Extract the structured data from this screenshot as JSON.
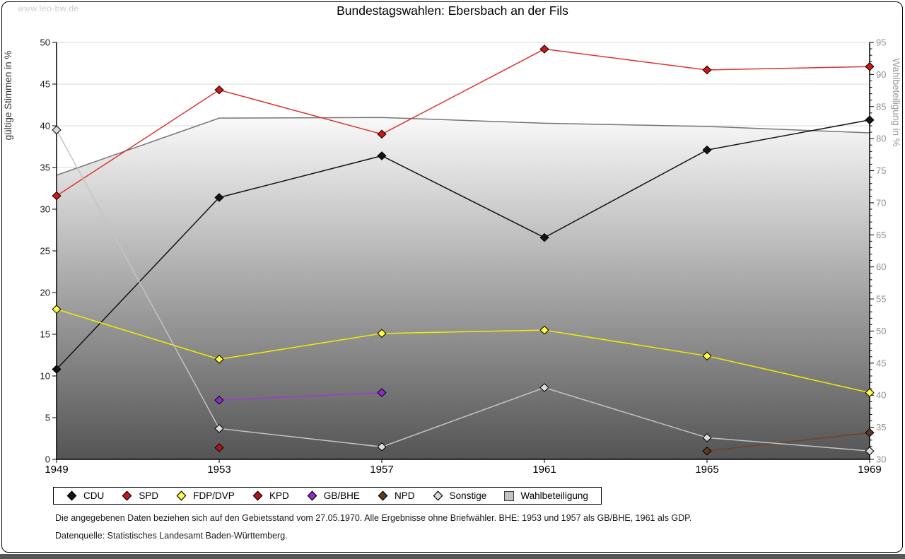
{
  "page": {
    "watermark": "www.leo-bw.de",
    "title": "Bundestagswahlen: Ebersbach an der Fils",
    "footnote_line1": "Die angegebenen Daten beziehen sich auf den Gebietsstand vom 27.05.1970. Alle Ergebnisse ohne Briefwähler. BHE: 1953 und 1957 als GB/BHE, 1961 als GDP.",
    "footnote_line2": "Datenquelle: Statistisches Landesamt Baden-Württemberg."
  },
  "chart_data": {
    "type": "line",
    "title": "Bundestagswahlen: Ebersbach an der Fils",
    "categories": [
      "1949",
      "1953",
      "1957",
      "1961",
      "1965",
      "1969"
    ],
    "xlabel": "",
    "ylabel_left": "gültige Stimmen in %",
    "ylabel_right": "Wahlbeteiligung in %",
    "ylim_left": [
      0,
      50
    ],
    "ylim_right": [
      30,
      95
    ],
    "yticks_left": [
      0,
      5,
      10,
      15,
      20,
      25,
      30,
      35,
      40,
      45,
      50
    ],
    "yticks_right": [
      30,
      35,
      40,
      45,
      50,
      55,
      60,
      65,
      70,
      75,
      80,
      85,
      90,
      95
    ],
    "grid": true,
    "legend_position": "bottom",
    "colors": {
      "gridline": "#d9d9d9",
      "axis": "#000000",
      "left_tick_text": "#1a1a1a",
      "right_tick_text": "#8f8f8f",
      "left_axis_title": "#333333",
      "right_axis_title": "#999999",
      "area_top": "#f9f9f9",
      "area_bottom": "#545454",
      "area_edge": "#757575"
    },
    "series": [
      {
        "name": "CDU",
        "axis": "left",
        "style": "line",
        "color": "#141414",
        "marker_fill": "#141414",
        "marker": "diamond",
        "values": [
          10.8,
          31.4,
          36.4,
          26.6,
          37.1,
          40.7
        ]
      },
      {
        "name": "SPD",
        "axis": "left",
        "style": "line",
        "color": "#e03131",
        "marker_fill": "#cc1719",
        "marker": "diamond",
        "values": [
          31.6,
          44.3,
          39.0,
          49.2,
          46.7,
          47.1
        ]
      },
      {
        "name": "FDP/DVP",
        "axis": "left",
        "style": "line",
        "color": "#eeee00",
        "marker_fill": "#ffff3c",
        "marker": "diamond",
        "values": [
          18.0,
          12.0,
          15.1,
          15.5,
          12.4,
          8.0
        ]
      },
      {
        "name": "KPD",
        "axis": "left",
        "style": "line",
        "color": "#b51317",
        "marker_fill": "#b51317",
        "marker": "diamond",
        "values": [
          null,
          1.4,
          null,
          null,
          null,
          null
        ]
      },
      {
        "name": "GB/BHE",
        "axis": "left",
        "style": "line",
        "color": "#9a3bd6",
        "marker_fill": "#8f2bd1",
        "marker": "diamond",
        "values": [
          null,
          7.1,
          8.0,
          null,
          null,
          null
        ]
      },
      {
        "name": "NPD",
        "axis": "left",
        "style": "line",
        "color": "#6f4326",
        "marker_fill": "#5f3a20",
        "marker": "diamond",
        "values": [
          null,
          null,
          null,
          null,
          1.0,
          3.2
        ]
      },
      {
        "name": "Sonstige",
        "axis": "left",
        "style": "line",
        "color": "#c4c4c4",
        "marker_fill": "#dcdcdc",
        "marker": "diamond",
        "values": [
          39.5,
          3.7,
          1.5,
          8.6,
          2.6,
          1.0
        ]
      },
      {
        "name": "Wahlbeteiligung",
        "axis": "right",
        "style": "area",
        "color": "#757575",
        "marker_fill": "#c2c2c2",
        "marker": "square",
        "values": [
          74.3,
          83.2,
          83.3,
          82.4,
          81.9,
          80.9
        ]
      }
    ]
  }
}
